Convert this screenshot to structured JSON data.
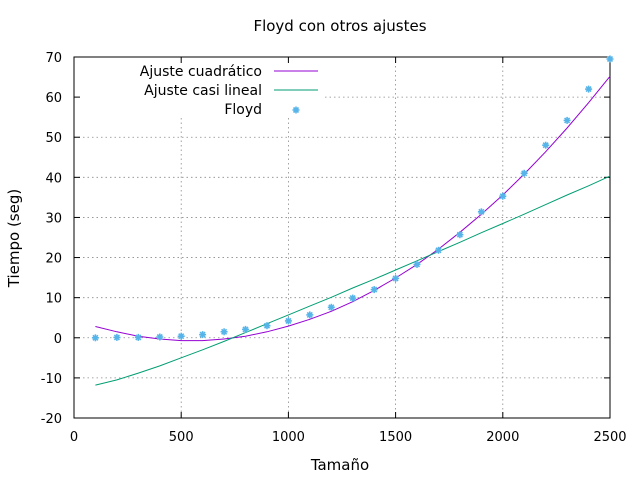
{
  "chart_data": {
    "type": "scatter",
    "title": "Floyd con otros ajustes",
    "xlabel": "Tamaño",
    "ylabel": "Tiempo (seg)",
    "xlim": [
      0,
      2500
    ],
    "ylim": [
      -20,
      70
    ],
    "xticks": [
      0,
      500,
      1000,
      1500,
      2000,
      2500
    ],
    "yticks": [
      -20,
      -10,
      0,
      10,
      20,
      30,
      40,
      50,
      60,
      70
    ],
    "grid": true,
    "legend_position": "top-left",
    "series": [
      {
        "name": "Ajuste cuadrático",
        "kind": "line",
        "color": "#9400d3",
        "x": [
          100,
          200,
          300,
          400,
          500,
          600,
          700,
          800,
          900,
          1000,
          1100,
          1200,
          1300,
          1400,
          1500,
          1600,
          1700,
          1800,
          1900,
          2000,
          2100,
          2200,
          2300,
          2400,
          2500
        ],
        "values": [
          2.8,
          1.5,
          0.4,
          -0.3,
          -0.7,
          -0.7,
          -0.3,
          0.4,
          1.5,
          2.9,
          4.6,
          6.6,
          9.0,
          11.8,
          14.9,
          18.3,
          22.1,
          26.3,
          30.8,
          35.6,
          40.8,
          46.4,
          52.3,
          58.6,
          65.2
        ]
      },
      {
        "name": "Ajuste casi lineal",
        "kind": "line",
        "color": "#009e73",
        "x": [
          100,
          200,
          300,
          400,
          500,
          600,
          700,
          800,
          900,
          1000,
          1100,
          1200,
          1300,
          1400,
          1500,
          1600,
          1700,
          1800,
          1900,
          2000,
          2100,
          2200,
          2300,
          2400,
          2500
        ],
        "values": [
          -11.8,
          -10.5,
          -8.8,
          -7.0,
          -5.0,
          -3.0,
          -0.9,
          1.3,
          3.5,
          5.7,
          7.9,
          10.1,
          12.4,
          14.6,
          16.9,
          19.2,
          21.5,
          23.8,
          26.2,
          28.5,
          30.8,
          33.2,
          35.6,
          37.9,
          40.3
        ]
      },
      {
        "name": "Floyd",
        "kind": "points",
        "color": "#56b4e9",
        "x": [
          100,
          200,
          300,
          400,
          500,
          600,
          700,
          800,
          900,
          1000,
          1100,
          1200,
          1300,
          1400,
          1500,
          1600,
          1700,
          1800,
          1900,
          2000,
          2100,
          2200,
          2300,
          2400,
          2500
        ],
        "values": [
          0.0,
          0.1,
          0.1,
          0.2,
          0.4,
          0.8,
          1.5,
          2.1,
          3.0,
          4.2,
          5.7,
          7.6,
          9.9,
          12.0,
          14.8,
          18.3,
          21.8,
          25.7,
          31.4,
          35.3,
          41.0,
          48.0,
          54.2,
          62.0,
          69.5
        ]
      }
    ]
  }
}
